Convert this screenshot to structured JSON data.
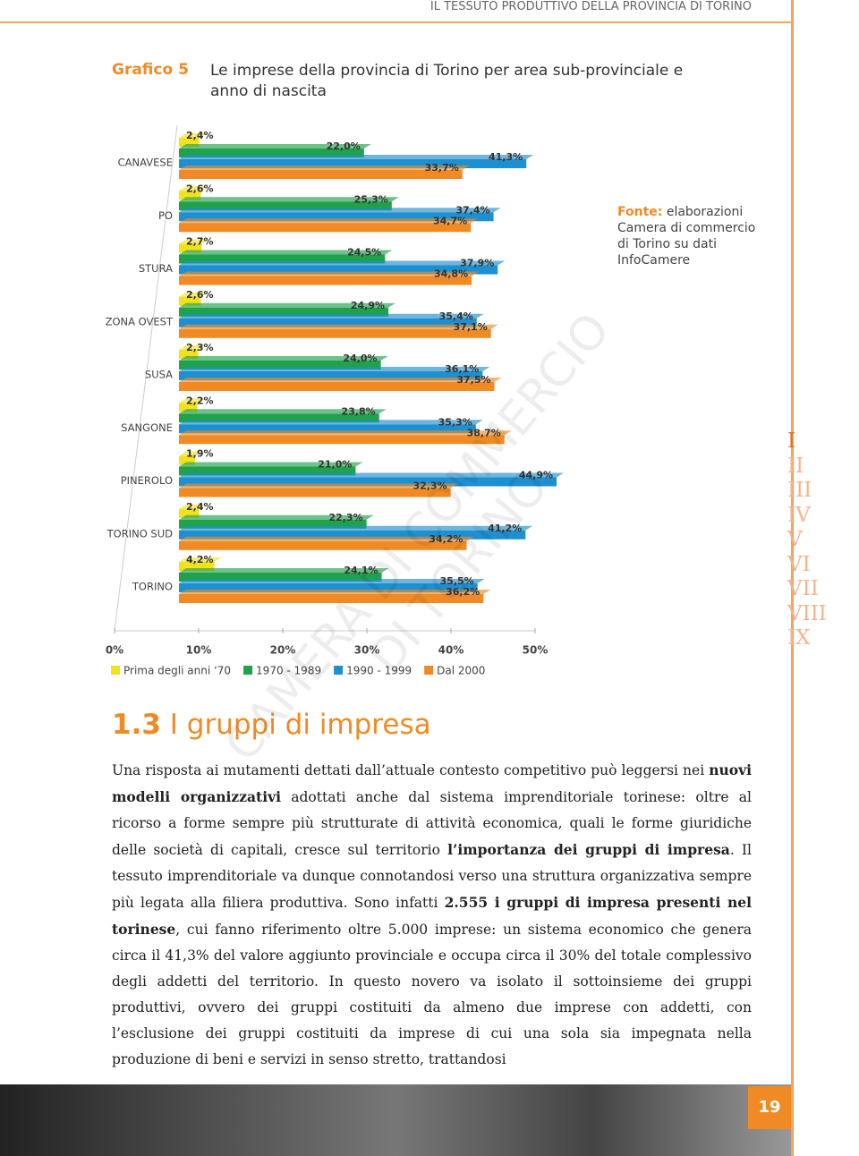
{
  "header": "IL TESSUTO PRODUTTIVO DELLA PROVINCIA DI TORINO",
  "chart_data": {
    "type": "bar",
    "label": "Grafico 5",
    "title": "Le imprese della provincia di Torino per area sub-provinciale e anno di nascita",
    "categories": [
      "CANAVESE",
      "PO",
      "STURA",
      "ZONA OVEST",
      "SUSA",
      "SANGONE",
      "PINEROLO",
      "TORINO SUD",
      "TORINO"
    ],
    "series": [
      {
        "name": "Prima degli anni ‘70",
        "color": "#f2e21c",
        "values": [
          2.4,
          2.6,
          2.7,
          2.6,
          2.3,
          2.2,
          1.9,
          2.4,
          4.2
        ],
        "value_labels": [
          "2,4%",
          "2,6%",
          "2,7%",
          "2,6%",
          "2,3%",
          "2,2%",
          "1,9%",
          "2,4%",
          "4,2%"
        ]
      },
      {
        "name": "1970 - 1989",
        "color": "#1fa24a",
        "values": [
          22.0,
          25.3,
          24.5,
          24.9,
          24.0,
          23.8,
          21.0,
          22.3,
          24.1
        ],
        "value_labels": [
          "22,0%",
          "25,3%",
          "24,5%",
          "24,9%",
          "24,0%",
          "23,8%",
          "21,0%",
          "22,3%",
          "24,1%"
        ]
      },
      {
        "name": "1990 - 1999",
        "color": "#1e8fd0",
        "values": [
          41.3,
          37.4,
          37.9,
          35.4,
          36.1,
          35.3,
          44.9,
          41.2,
          35.5
        ],
        "value_labels": [
          "41,3%",
          "37,4%",
          "37,9%",
          "35,4%",
          "36,1%",
          "35,3%",
          "44,9%",
          "41,2%",
          "35,5%"
        ]
      },
      {
        "name": "Dal 2000",
        "color": "#f08a24",
        "values": [
          33.7,
          34.7,
          34.8,
          37.1,
          37.5,
          38.7,
          32.3,
          34.2,
          36.2
        ],
        "value_labels": [
          "33,7%",
          "34,7%",
          "34,8%",
          "37,1%",
          "37,5%",
          "38,7%",
          "32,3%",
          "34,2%",
          "36,2%"
        ]
      }
    ],
    "xlim": [
      0,
      50
    ],
    "xticks": [
      {
        "value": 0,
        "label": "0%"
      },
      {
        "value": 10,
        "label": "10%"
      },
      {
        "value": 20,
        "label": "20%"
      },
      {
        "value": 30,
        "label": "30%"
      },
      {
        "value": 40,
        "label": "40%"
      },
      {
        "value": 50,
        "label": "50%"
      }
    ],
    "source_label": "Fonte:",
    "source": "elaborazioni Camera di commercio di Torino su dati InfoCamere"
  },
  "watermark": "CAMERA DI COMMERCIO DI TORINO",
  "sidebar": [
    "I",
    "II",
    "III",
    "IV",
    "V",
    "VI",
    "VII",
    "VIII",
    "IX"
  ],
  "section": {
    "number": "1.3",
    "title": "I gruppi di impresa"
  },
  "paragraph": [
    "Una risposta ai mutamenti dettati dall’attuale contesto competitivo può leggersi nei ",
    "nuovi modelli organizzativi",
    " adottati anche dal sistema imprenditoriale torinese: oltre al ricorso a forme sempre più strutturate di attività economica, quali le forme giuridiche delle società di capitali, cresce sul territorio ",
    "l’importanza dei gruppi di impresa",
    ". Il tessuto imprenditoriale va dunque connotandosi verso una struttura organizzativa sempre più legata alla filiera produttiva. Sono infatti ",
    "2.555 i gruppi di impresa presenti nel torinese",
    ", cui fanno riferimento oltre 5.000 imprese: un sistema economico che genera circa il 41,3% del valore aggiunto provinciale e occupa circa il 30% del totale complessivo degli addetti del territorio. In questo novero va isolato il sottoinsieme dei gruppi produttivi, ovvero dei gruppi costituiti da almeno due imprese con addetti, con l’esclusione dei gruppi costituiti da imprese di cui una sola sia impegnata nella produzione di beni e servizi in senso stretto, trattandosi"
  ],
  "page_number": "19"
}
